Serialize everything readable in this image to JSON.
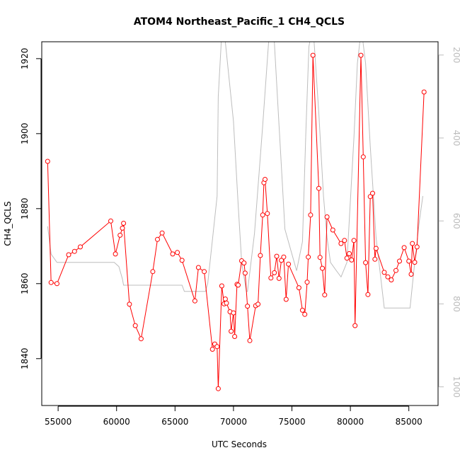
{
  "chart_data": {
    "type": "line",
    "title": "ATOM4 Northeast_Pacific_1 CH4_QCLS",
    "xlabel": "UTC Seconds",
    "ylabel": "CH4_QCLS",
    "xlim": [
      53600,
      87500
    ],
    "ylim": [
      1827.5,
      1924.5
    ],
    "y2lim": [
      1045,
      168
    ],
    "y2_reversed": true,
    "grid": false,
    "x_ticks": [
      55000,
      60000,
      65000,
      70000,
      75000,
      80000,
      85000
    ],
    "x_tick_labels": [
      "55000",
      "60000",
      "65000",
      "70000",
      "75000",
      "80000",
      "85000"
    ],
    "y_ticks": [
      1840,
      1860,
      1880,
      1900,
      1920
    ],
    "y_tick_labels": [
      "1840",
      "1860",
      "1880",
      "1900",
      "1920"
    ],
    "y2_ticks": [
      200,
      400,
      600,
      800,
      1000
    ],
    "y2_tick_labels": [
      "200",
      "400",
      "600",
      "800",
      "1000"
    ],
    "series": [
      {
        "type": "line+points",
        "color": "#ff0000",
        "x": [
          54100,
          54400,
          54900,
          55900,
          56400,
          56900,
          59500,
          59900,
          60300,
          60500,
          60600,
          61100,
          61600,
          62100,
          63100,
          63500,
          63900,
          64800,
          65200,
          65600,
          66700,
          67000,
          67500,
          68200,
          68400,
          68600,
          68700,
          69000,
          69200,
          69300,
          69400,
          69700,
          69800,
          70000,
          70100,
          70300,
          70400,
          70700,
          70900,
          71000,
          71200,
          71400,
          71900,
          72100,
          72300,
          72500,
          72600,
          72700,
          72900,
          73200,
          73500,
          73700,
          73900,
          74100,
          74300,
          74500,
          74700,
          75600,
          75900,
          76100,
          76300,
          76400,
          76600,
          76800,
          77300,
          77400,
          77600,
          77800,
          78000,
          78500,
          79200,
          79500,
          79700,
          79900,
          80100,
          80300,
          80400,
          80900,
          81100,
          81300,
          81500,
          81700,
          81900,
          82100,
          82200,
          82900,
          83200,
          83500,
          83900,
          84200,
          84600,
          85000,
          85200,
          85300,
          85500,
          85700,
          86300
        ],
        "y": [
          1892.6,
          1860.3,
          1860.0,
          1867.7,
          1868.6,
          1869.8,
          1876.7,
          1867.9,
          1872.9,
          1874.8,
          1876.1,
          1854.5,
          1848.8,
          1845.3,
          1863.2,
          1871.8,
          1873.5,
          1867.9,
          1868.3,
          1866.2,
          1855.4,
          1864.3,
          1863.2,
          1842.5,
          1843.9,
          1843.2,
          1832.0,
          1859.4,
          1854.6,
          1855.9,
          1854.8,
          1852.5,
          1847.3,
          1852.2,
          1845.9,
          1859.8,
          1859.6,
          1866.1,
          1865.5,
          1862.8,
          1854.0,
          1844.8,
          1854.1,
          1854.5,
          1867.5,
          1878.3,
          1886.9,
          1887.8,
          1878.7,
          1861.5,
          1862.9,
          1867.3,
          1861.4,
          1866.2,
          1867.1,
          1855.8,
          1865.2,
          1858.9,
          1852.9,
          1851.8,
          1860.4,
          1867.1,
          1878.3,
          1920.9,
          1885.4,
          1867.0,
          1864.1,
          1857.0,
          1877.8,
          1874.3,
          1870.7,
          1871.5,
          1866.8,
          1868.0,
          1866.3,
          1871.5,
          1848.8,
          1920.9,
          1893.8,
          1865.6,
          1857.1,
          1883.2,
          1884.1,
          1866.5,
          1869.4,
          1863.0,
          1861.8,
          1861.0,
          1863.5,
          1866.0,
          1869.6,
          1866.0,
          1862.5,
          1870.7,
          1865.7,
          1869.8,
          1911.1
        ]
      },
      {
        "type": "line",
        "axis": "right",
        "color": "#bdbdbd",
        "x": [
          54100,
          54400,
          54900,
          55800,
          59500,
          59800,
          60200,
          60500,
          60600,
          61100,
          65500,
          65600,
          65800,
          67600,
          67800,
          68600,
          68700,
          68950,
          69200,
          70000,
          70400,
          70700,
          71100,
          71200,
          71800,
          72500,
          73000,
          73250,
          73500,
          73900,
          74000,
          74400,
          75400,
          75900,
          76200,
          76450,
          76700,
          76900,
          77300,
          77700,
          78000,
          78300,
          78800,
          79200,
          79700,
          80300,
          80600,
          80800,
          81000,
          81300,
          81700,
          82200,
          82900,
          85100,
          85500,
          85900,
          86200
        ],
        "y": [
          613,
          680,
          700,
          700,
          700,
          700,
          710,
          740,
          755,
          755,
          755,
          755,
          770,
          770,
          750,
          540,
          300,
          170,
          140,
          360,
          560,
          700,
          770,
          770,
          630,
          370,
          170,
          140,
          170,
          370,
          420,
          620,
          720,
          650,
          380,
          180,
          140,
          170,
          340,
          540,
          640,
          700,
          720,
          735,
          700,
          400,
          220,
          170,
          150,
          220,
          420,
          640,
          810,
          810,
          700,
          600,
          540
        ]
      }
    ]
  }
}
